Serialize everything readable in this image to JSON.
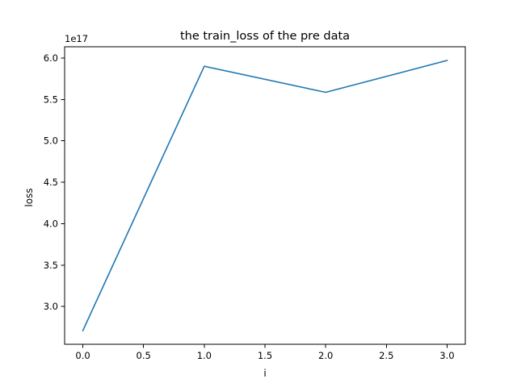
{
  "chart_data": {
    "type": "line",
    "title": "the train_loss of the pre data",
    "xlabel": "i",
    "ylabel": "loss",
    "y_offset_label": "1e17",
    "x": [
      0,
      1,
      2,
      3
    ],
    "series": [
      {
        "values": [
          2.71,
          5.9,
          5.585,
          5.97
        ],
        "color": "#1f77b4"
      }
    ],
    "xlim": [
      -0.15,
      3.15
    ],
    "ylim": [
      2.545,
      6.135
    ],
    "xticks": [
      0.0,
      0.5,
      1.0,
      1.5,
      2.0,
      2.5,
      3.0
    ],
    "xtick_labels": [
      "0.0",
      "0.5",
      "1.0",
      "1.5",
      "2.0",
      "2.5",
      "3.0"
    ],
    "yticks": [
      3.0,
      3.5,
      4.0,
      4.5,
      5.0,
      5.5,
      6.0
    ],
    "ytick_labels": [
      "3.0",
      "3.5",
      "4.0",
      "4.5",
      "5.0",
      "5.5",
      "6.0"
    ],
    "grid": false,
    "legend": false
  }
}
